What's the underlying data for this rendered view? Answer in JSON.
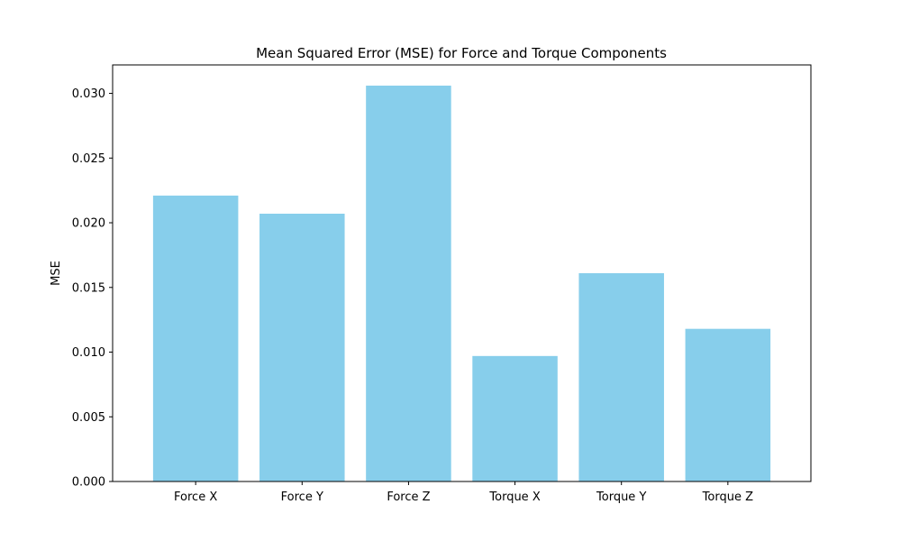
{
  "chart_data": {
    "type": "bar",
    "title": "Mean Squared Error (MSE) for Force and Torque Components",
    "xlabel": "",
    "ylabel": "MSE",
    "categories": [
      "Force X",
      "Force Y",
      "Force Z",
      "Torque X",
      "Torque Y",
      "Torque Z"
    ],
    "values": [
      0.0221,
      0.0207,
      0.0306,
      0.0097,
      0.0161,
      0.0118
    ],
    "ylim": [
      0,
      0.0322
    ],
    "yticks": [
      0.0,
      0.005,
      0.01,
      0.015,
      0.02,
      0.025,
      0.03
    ],
    "ytick_labels": [
      "0.000",
      "0.005",
      "0.010",
      "0.015",
      "0.020",
      "0.025",
      "0.030"
    ],
    "bar_color": "#87ceeb",
    "grid": false,
    "legend": "none"
  }
}
